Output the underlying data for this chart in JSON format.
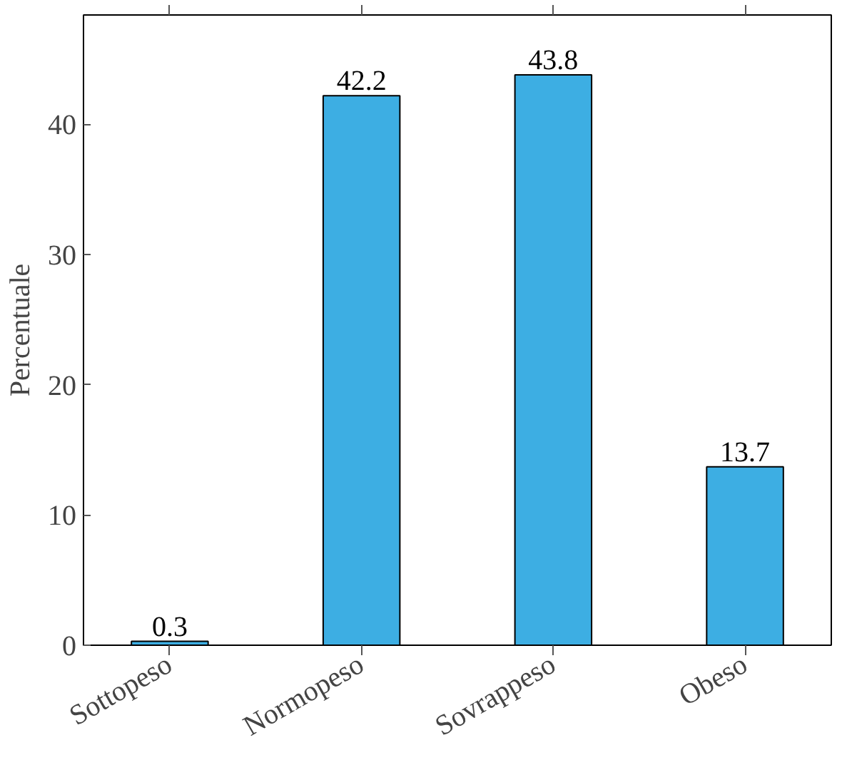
{
  "chart_data": {
    "type": "bar",
    "ylabel": "Percentuale",
    "categories": [
      "Sottopeso",
      "Normopeso",
      "Sovrappeso",
      "Obeso"
    ],
    "values": [
      0.3,
      42.2,
      43.8,
      13.7
    ],
    "color": "#3daee3",
    "ylim": [
      0,
      48.4
    ],
    "yticks": [
      0,
      10,
      20,
      30,
      40
    ],
    "grid": false,
    "data_labels": true
  }
}
